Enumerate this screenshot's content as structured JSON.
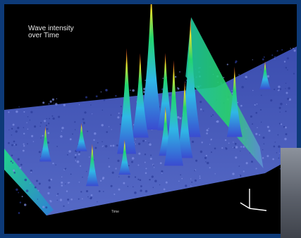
{
  "chart_data": {
    "type": "surface-3d",
    "title": "Wave intensity\nover Time",
    "xlabel": "Time",
    "ylabel": "",
    "grid": false,
    "colormap": [
      "#3a4bd0",
      "#2fb7e6",
      "#22d66e",
      "#e6e02a",
      "#e8321e"
    ],
    "peaks": [
      {
        "x": 0.5,
        "y": 0.45,
        "height": 1.0
      },
      {
        "x": 0.41,
        "y": 0.62,
        "height": 0.75
      },
      {
        "x": 0.46,
        "y": 0.5,
        "height": 0.6
      },
      {
        "x": 0.55,
        "y": 0.48,
        "height": 0.55
      },
      {
        "x": 0.58,
        "y": 0.8,
        "height": 0.75
      },
      {
        "x": 0.64,
        "y": 0.58,
        "height": 0.85
      },
      {
        "x": 0.62,
        "y": 0.75,
        "height": 0.55
      },
      {
        "x": 0.8,
        "y": 0.65,
        "height": 0.5
      },
      {
        "x": 0.28,
        "y": 0.85,
        "height": 0.3
      },
      {
        "x": 0.4,
        "y": 0.8,
        "height": 0.25
      },
      {
        "x": 0.12,
        "y": 0.55,
        "height": 0.25
      },
      {
        "x": 0.25,
        "y": 0.52,
        "height": 0.2
      },
      {
        "x": 0.9,
        "y": 0.3,
        "height": 0.2
      },
      {
        "x": 0.55,
        "y": 0.7,
        "height": 0.35
      }
    ],
    "ridge": {
      "start": 0.62,
      "end": 0.9,
      "height": 0.75
    }
  }
}
